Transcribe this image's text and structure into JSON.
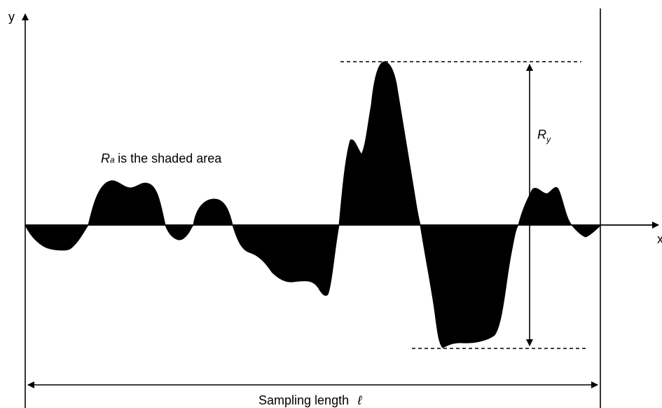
{
  "labels": {
    "y_axis": "y",
    "x_axis": "x",
    "ra_symbol": "R",
    "ra_subscript": "a",
    "ra_text": "is the shaded area",
    "ry_symbol": "R",
    "ry_subscript": "y",
    "sampling_length": "Sampling length",
    "ell_symbol": "ℓ"
  },
  "colors": {
    "stroke": "#000000",
    "fill": "#000000",
    "background": "#ffffff"
  }
}
